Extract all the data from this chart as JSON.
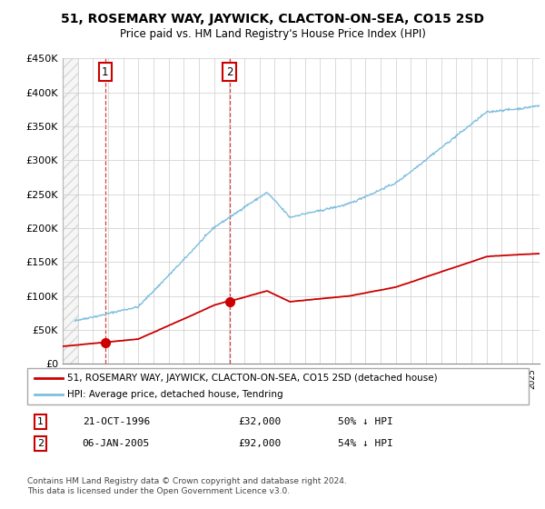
{
  "title": "51, ROSEMARY WAY, JAYWICK, CLACTON-ON-SEA, CO15 2SD",
  "subtitle": "Price paid vs. HM Land Registry's House Price Index (HPI)",
  "ylabel_ticks": [
    "£0",
    "£50K",
    "£100K",
    "£150K",
    "£200K",
    "£250K",
    "£300K",
    "£350K",
    "£400K",
    "£450K"
  ],
  "ylim": [
    0,
    450000
  ],
  "xlim_start": 1994.0,
  "xlim_end": 2025.5,
  "hpi_color": "#7fbfdf",
  "price_color": "#cc0000",
  "sale1_x": 1996.81,
  "sale1_y": 32000,
  "sale2_x": 2005.02,
  "sale2_y": 92000,
  "legend_label1": "51, ROSEMARY WAY, JAYWICK, CLACTON-ON-SEA, CO15 2SD (detached house)",
  "legend_label2": "HPI: Average price, detached house, Tendring",
  "table_row1_num": "1",
  "table_row1_date": "21-OCT-1996",
  "table_row1_price": "£32,000",
  "table_row1_hpi": "50% ↓ HPI",
  "table_row2_num": "2",
  "table_row2_date": "06-JAN-2005",
  "table_row2_price": "£92,000",
  "table_row2_hpi": "54% ↓ HPI",
  "footnote": "Contains HM Land Registry data © Crown copyright and database right 2024.\nThis data is licensed under the Open Government Licence v3.0.",
  "hatch_color": "#cccccc",
  "background_color": "#ffffff",
  "grid_color": "#cccccc"
}
